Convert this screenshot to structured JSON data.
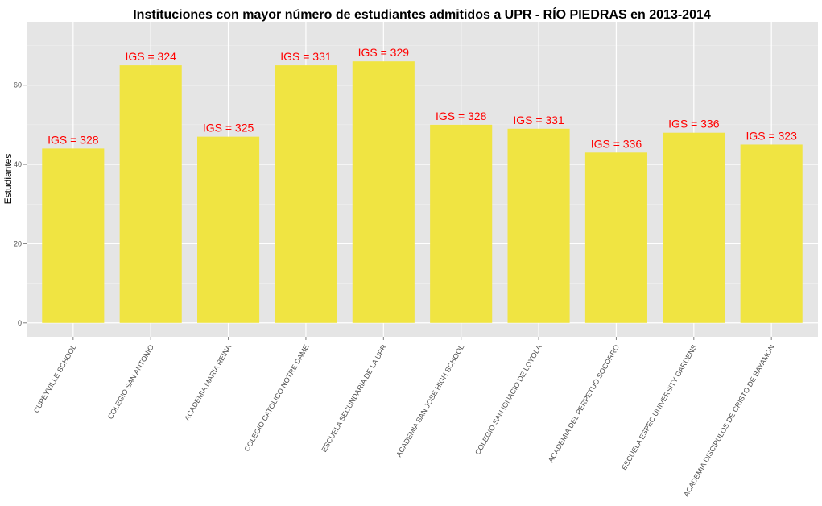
{
  "chart_data": {
    "type": "bar",
    "title": "Instituciones con mayor número de estudiantes admitidos a UPR - RÍO PIEDRAS en 2013-2014",
    "xlabel": "",
    "ylabel": "Estudiantes",
    "ylim": [
      -3.5,
      76
    ],
    "yticks": [
      "0",
      "20",
      "40",
      "60"
    ],
    "grid": true,
    "legend": "none",
    "bar_color": "#F0E442",
    "label_color": "#FF0000",
    "panel_color": "#E5E5E5",
    "categories": [
      "CUPEYVILLE SCHOOL",
      "COLEGIO SAN ANTONIO",
      "ACADEMIA MARIA REINA",
      "COLEGIO CATOLICO NOTRE DAME",
      "ESCUELA SECUNDARIA DE LA UPR",
      "ACADEMIA SAN JOSE HIGH SCHOOL",
      "COLEGIO SAN IGNACIO DE LOYOLA",
      "ACADEMIA DEL PERPETUO SOCORRO",
      "ESCUELA ESPEC UNIVERSITY GARDENS",
      "ACADEMIA DISCIPULOS DE CRISTO DE BAYAMON"
    ],
    "values": [
      44,
      65,
      47,
      65,
      66,
      50,
      49,
      43,
      48,
      45
    ],
    "labels": [
      "IGS = 328",
      "IGS = 324",
      "IGS = 325",
      "IGS = 331",
      "IGS = 329",
      "IGS = 328",
      "IGS = 331",
      "IGS = 336",
      "IGS = 336",
      "IGS = 323"
    ]
  }
}
